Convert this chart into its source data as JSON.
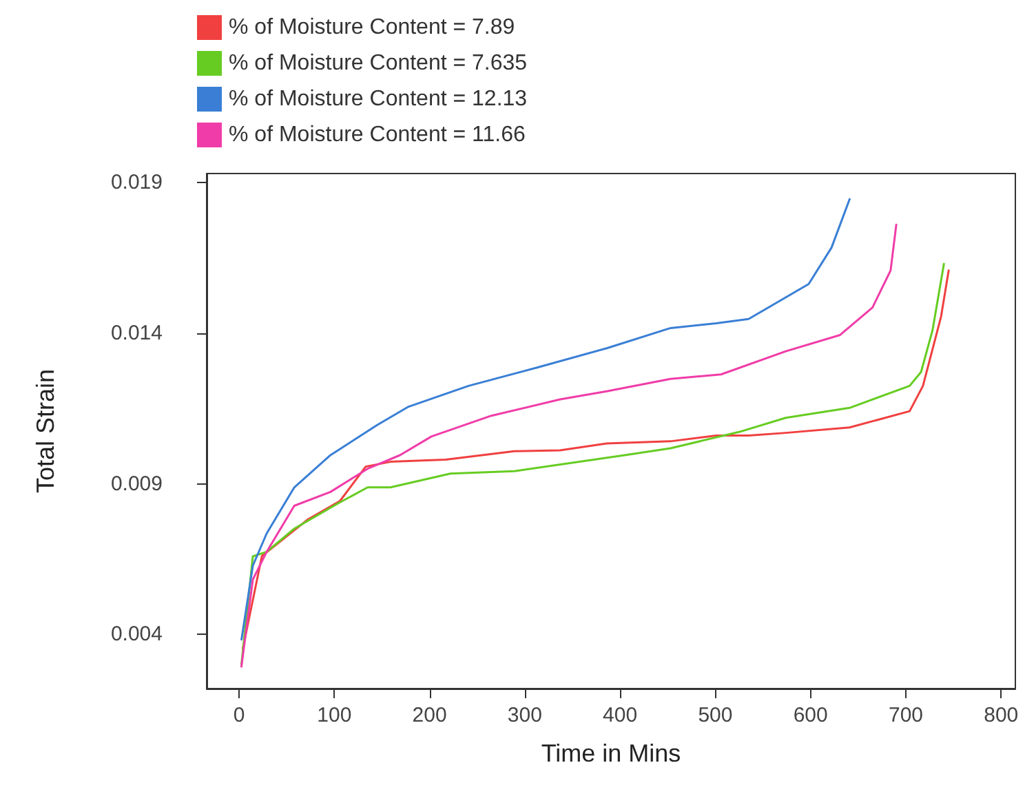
{
  "chart_data": {
    "type": "line",
    "xlabel": "Time in Mins",
    "ylabel": "Total Strain",
    "xlim": [
      -34,
      815
    ],
    "ylim": [
      0.0022,
      0.0193
    ],
    "xticks": [
      0,
      100,
      200,
      300,
      400,
      500,
      600,
      700,
      800
    ],
    "yticks": [
      0.004,
      0.009,
      0.014,
      0.019
    ],
    "grid": false,
    "legend": "top left",
    "marker": "none",
    "line_style": "solid",
    "series": [
      {
        "name": "% of Moisture Content = 7.89",
        "color": "#f04040",
        "x": [
          4,
          24,
          72,
          106,
          133,
          159,
          217,
          289,
          337,
          386,
          453,
          501,
          535,
          574,
          641,
          704,
          718,
          737,
          745
        ],
        "values": [
          0.00353,
          0.0066,
          0.00781,
          0.00843,
          0.00957,
          0.00973,
          0.0098,
          0.01008,
          0.01011,
          0.01034,
          0.01041,
          0.0106,
          0.0106,
          0.01069,
          0.01087,
          0.01141,
          0.01225,
          0.01455,
          0.01608
        ]
      },
      {
        "name": "% of Moisture Content = 7.635",
        "color": "#66cc22",
        "x": [
          2.5,
          14.5,
          29,
          58,
          104,
          135,
          159,
          222,
          289,
          405,
          453,
          525,
          574,
          641,
          704,
          716,
          728,
          740
        ],
        "values": [
          0.003,
          0.00659,
          0.00674,
          0.00751,
          0.00835,
          0.00888,
          0.00888,
          0.00934,
          0.00942,
          0.00995,
          0.01018,
          0.01072,
          0.01119,
          0.01152,
          0.01225,
          0.01271,
          0.01409,
          0.0163
        ]
      },
      {
        "name": "% of Moisture Content = 12.13",
        "color": "#3a7fd5",
        "x": [
          2.6,
          14.5,
          29,
          58,
          96,
          145,
          178,
          241,
          313,
          386,
          453,
          501,
          535,
          598,
          622,
          641
        ],
        "values": [
          0.00383,
          0.00628,
          0.00735,
          0.00888,
          0.00995,
          0.01095,
          0.01156,
          0.01225,
          0.01286,
          0.0135,
          0.01417,
          0.01433,
          0.01447,
          0.01563,
          0.01684,
          0.01845
        ]
      },
      {
        "name": "% of Moisture Content = 11.66",
        "color": "#f03ca8",
        "x": [
          2.5,
          14.5,
          29,
          58,
          96,
          135,
          169,
          202,
          265,
          337,
          386,
          453,
          506,
          574,
          631,
          665,
          684,
          690
        ],
        "values": [
          0.00293,
          0.00582,
          0.00674,
          0.00827,
          0.00873,
          0.0095,
          0.00995,
          0.01057,
          0.01126,
          0.0118,
          0.01207,
          0.01248,
          0.01263,
          0.0134,
          0.01394,
          0.01485,
          0.01608,
          0.0176
        ]
      }
    ]
  }
}
